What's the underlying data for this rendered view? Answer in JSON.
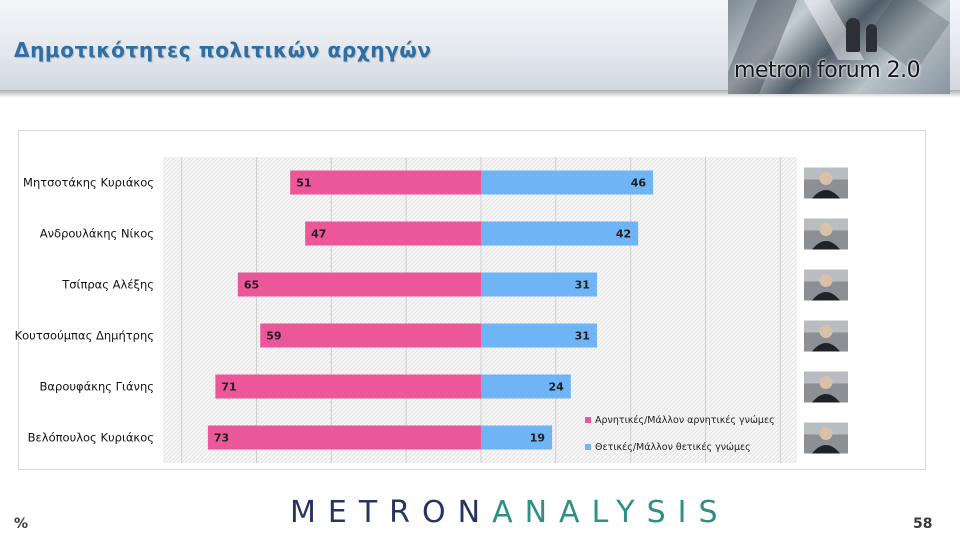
{
  "title": "Δημοτικότητες πολιτικών αρχηγών",
  "banner": {
    "text": "metron forum 2.0"
  },
  "footer": {
    "unit": "%",
    "page": "58",
    "logo_part1": "METRON",
    "logo_part2": "ANALYSIS"
  },
  "colors": {
    "negative": "#ec579a",
    "positive": "#6fb4f5",
    "title": "#2f6ea3"
  },
  "chart_data": {
    "type": "bar",
    "orientation": "horizontal-diverging",
    "categories": [
      "Μητσοτάκης Κυριάκος",
      "Ανδρουλάκης Νίκος",
      "Τσίπρας Αλέξης",
      "Κουτσούμπας Δημήτρης",
      "Βαρουφάκης Γιάνης",
      "Βελόπουλος Κυριάκος"
    ],
    "series": [
      {
        "name": "Αρνητικές/Μάλλον αρνητικές γνώμες",
        "color": "#ec579a",
        "values": [
          51,
          47,
          65,
          59,
          71,
          73
        ]
      },
      {
        "name": "Θετικές/Μάλλον θετικές γνώμες",
        "color": "#6fb4f5",
        "values": [
          46,
          42,
          31,
          31,
          24,
          19
        ]
      }
    ],
    "xlim": [
      -85,
      85
    ],
    "grid": true,
    "legend_position": "bottom-right",
    "photos": [
      "portrait-icon",
      "portrait-icon",
      "portrait-icon",
      "portrait-icon",
      "portrait-icon",
      "portrait-icon"
    ]
  }
}
